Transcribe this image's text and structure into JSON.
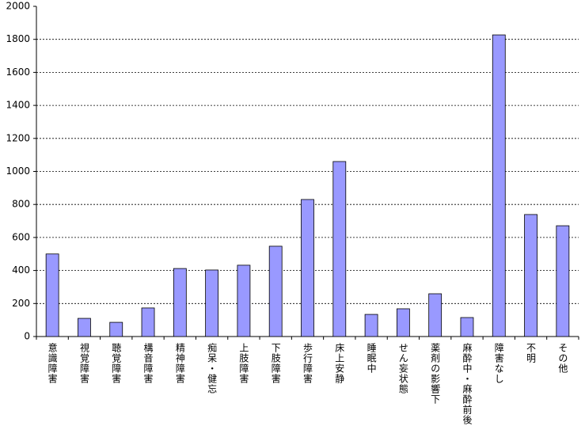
{
  "chart_data": {
    "type": "bar",
    "categories": [
      "意識障害",
      "視覚障害",
      "聴覚障害",
      "構音障害",
      "精神障害",
      "痴呆・健忘",
      "上肢障害",
      "下肢障害",
      "歩行障害",
      "床上安静",
      "睡眠中",
      "せん妄状態",
      "薬剤の影響下",
      "麻酔中・麻酔前後",
      "障害なし",
      "不明",
      "その他"
    ],
    "values": [
      500,
      110,
      86,
      173,
      412,
      403,
      432,
      547,
      830,
      1060,
      134,
      168,
      259,
      115,
      1827,
      739,
      671
    ],
    "color": "#9999ff",
    "ylim": [
      0,
      2000
    ],
    "yticks": [
      0,
      200,
      400,
      600,
      800,
      1000,
      1200,
      1400,
      1600,
      1800,
      2000
    ],
    "grid": true
  }
}
